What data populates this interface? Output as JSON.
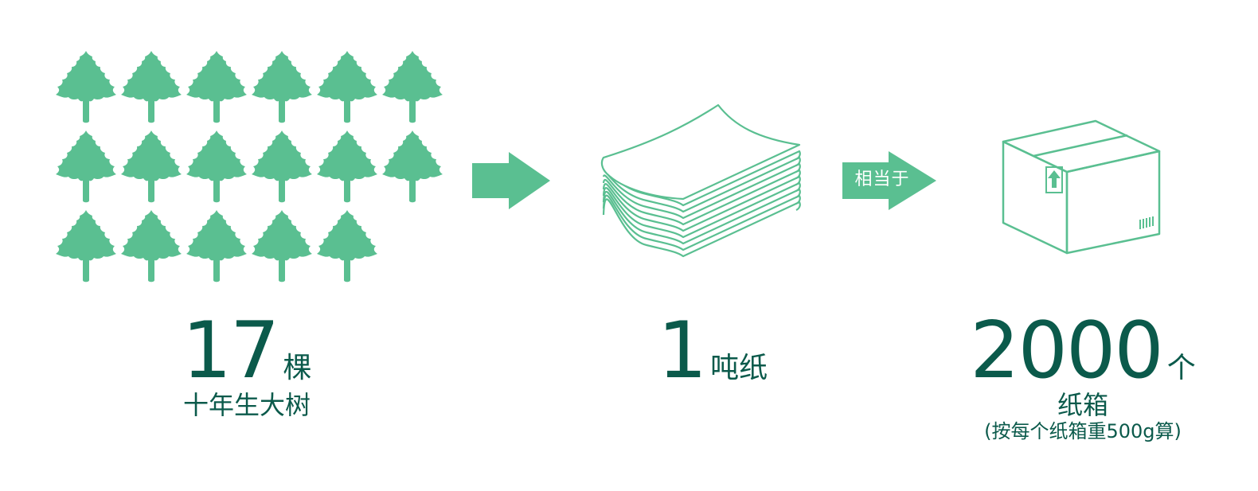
{
  "trees": {
    "count_icons": 17,
    "icon": "tree-icon",
    "color": "#5abf91"
  },
  "arrow": {
    "icon": "arrow-right-icon",
    "color": "#5abf91"
  },
  "equivalent_arrow": {
    "label": "相当于",
    "icon": "arrow-right-icon",
    "color": "#5abf91"
  },
  "paper_icon": "paper-stack-icon",
  "box_icon": "cardboard-box-icon",
  "stats": {
    "trees": {
      "number": "17",
      "unit": "棵",
      "caption": "十年生大树"
    },
    "paper": {
      "number": "1",
      "unit": "吨纸"
    },
    "box": {
      "number": "2000",
      "unit": "个",
      "caption": "纸箱",
      "note": "(按每个纸箱重500g算)"
    }
  },
  "colors": {
    "accent_green": "#5abf91",
    "dark_green": "#0b5a4b"
  }
}
